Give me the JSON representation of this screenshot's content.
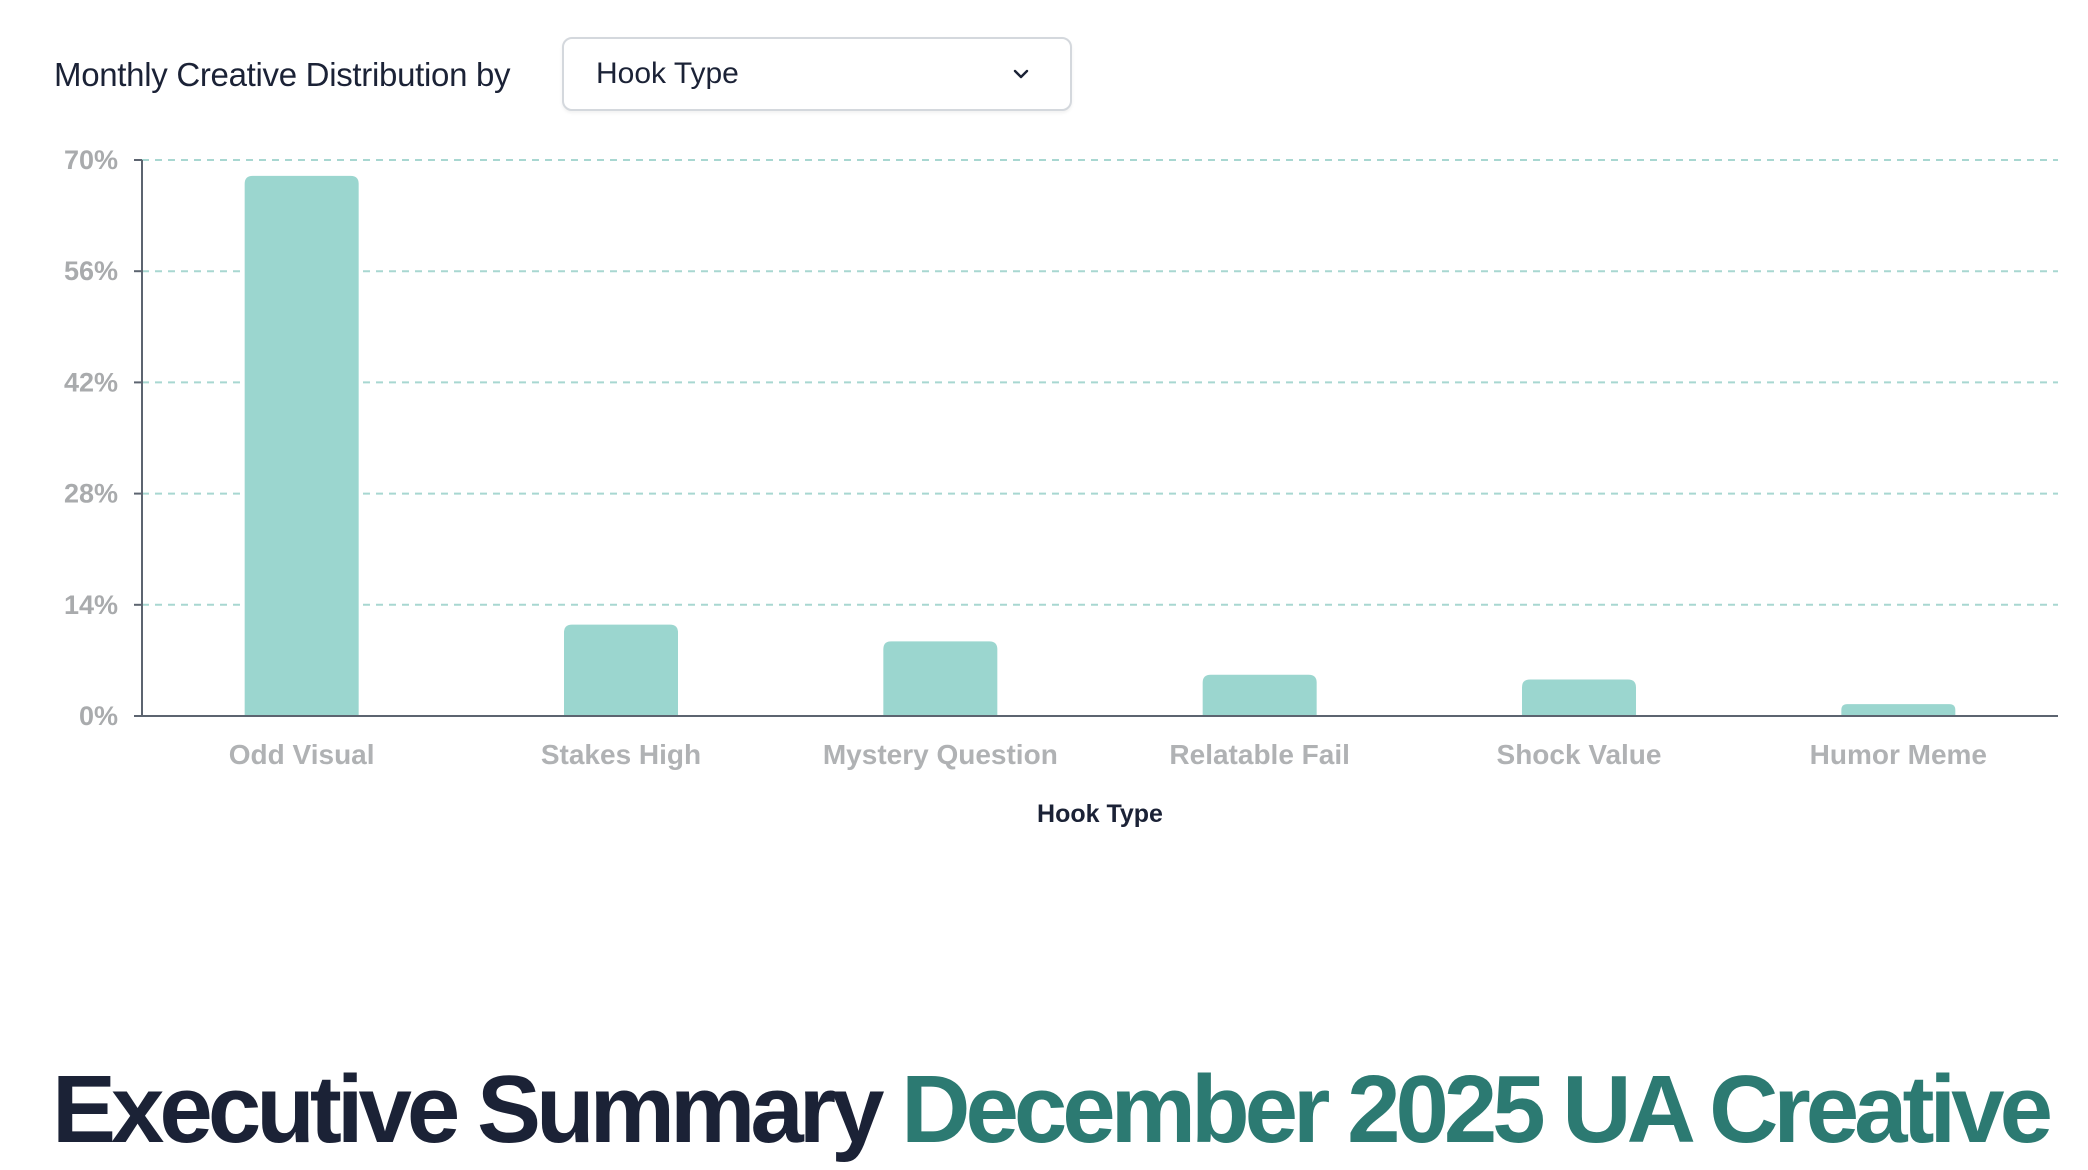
{
  "chart_header": {
    "title": "Monthly Creative Distribution by",
    "dropdown_value": "Hook Type"
  },
  "colors": {
    "bar": "#9bd6cf",
    "grid": "#a8d7d1",
    "axis": "#5c6470",
    "heading_dark": "#1b2236",
    "heading_accent": "#2c7a72"
  },
  "icons": {
    "dropdown": "chevron-down-icon"
  },
  "chart_data": {
    "type": "bar",
    "categories": [
      "Odd Visual",
      "Stakes High",
      "Mystery Question",
      "Relatable Fail",
      "Shock Value",
      "Humor Meme"
    ],
    "values": [
      68,
      11.5,
      9.4,
      5.2,
      4.6,
      1.5
    ],
    "y_ticks": [
      "0%",
      "14%",
      "28%",
      "42%",
      "56%",
      "70%"
    ],
    "ylim": [
      0,
      70
    ],
    "xlabel": "Hook Type",
    "ylabel": "",
    "grid": true,
    "legend": "none"
  },
  "summary_heading": {
    "part1": "Executive Summary",
    "part2": "December 2025 UA Creative"
  }
}
